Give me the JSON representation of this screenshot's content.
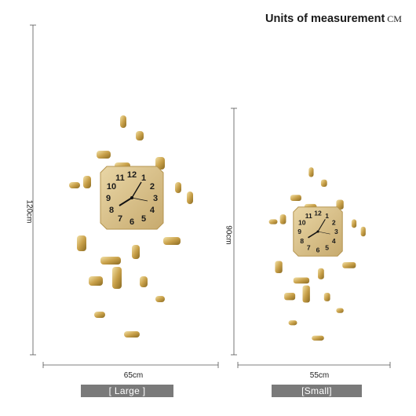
{
  "header": {
    "title": "Units of measurement",
    "unit": "CM"
  },
  "large": {
    "height_label": "120cm",
    "width_label": "65cm",
    "size_label": "[ Large ]"
  },
  "small": {
    "height_label": "90cm",
    "width_label": "55cm",
    "size_label": "[Small]"
  },
  "clock_numerals": [
    "12",
    "1",
    "2",
    "3",
    "4",
    "5",
    "6",
    "7",
    "8",
    "9",
    "10",
    "11"
  ],
  "colors": {
    "gold": "#c9a95c",
    "gold_dark": "#a8873e",
    "face": "#d8c08a",
    "label_bg": "#7a7a7a",
    "dim_line": "#555555"
  }
}
